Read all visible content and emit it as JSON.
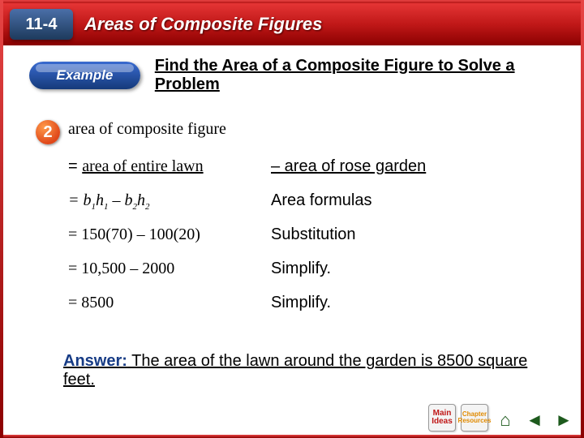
{
  "titlebar": {
    "lesson_number": "11-4",
    "title": "Areas of Composite Figures",
    "bg_gradient": [
      "#e53535",
      "#8b0000"
    ],
    "lesson_box_bg": [
      "#4a6fa8",
      "#1d3a5c"
    ]
  },
  "example": {
    "pill_label": "Example",
    "pill_bg": [
      "#3a6bd0",
      "#153a7a"
    ],
    "title": "Find the Area of a Composite Figure to Solve a Problem",
    "step_number": "2",
    "step_badge_color": "#e0481a"
  },
  "work": {
    "line1": "area of composite figure",
    "line2_left_prefix": "= ",
    "line2_left": "area of entire lawn",
    "line2_right": "– area of rose garden",
    "line3_left": "= b₁h₁ – b₂h₂",
    "line3_right": "Area formulas",
    "line4_left": "= 150(70) – 100(20)",
    "line4_right": "Substitution",
    "line5_left": "= 10,500 – 2000",
    "line5_right": "Simplify.",
    "line6_left": "= 8500",
    "line6_right": "Simplify."
  },
  "answer": {
    "label": "Answer:",
    "text": "The area of the lawn around the garden is 8500 square feet."
  },
  "footer": {
    "main_label": "Main\nIdeas",
    "resources_label": "Chapter\nResources",
    "home_icon": "⌂",
    "back_icon": "◄",
    "fwd_icon": "►"
  },
  "colors": {
    "frame": "#c01818",
    "text": "#000000",
    "answer_label": "#163b85",
    "underline": "#000000"
  }
}
